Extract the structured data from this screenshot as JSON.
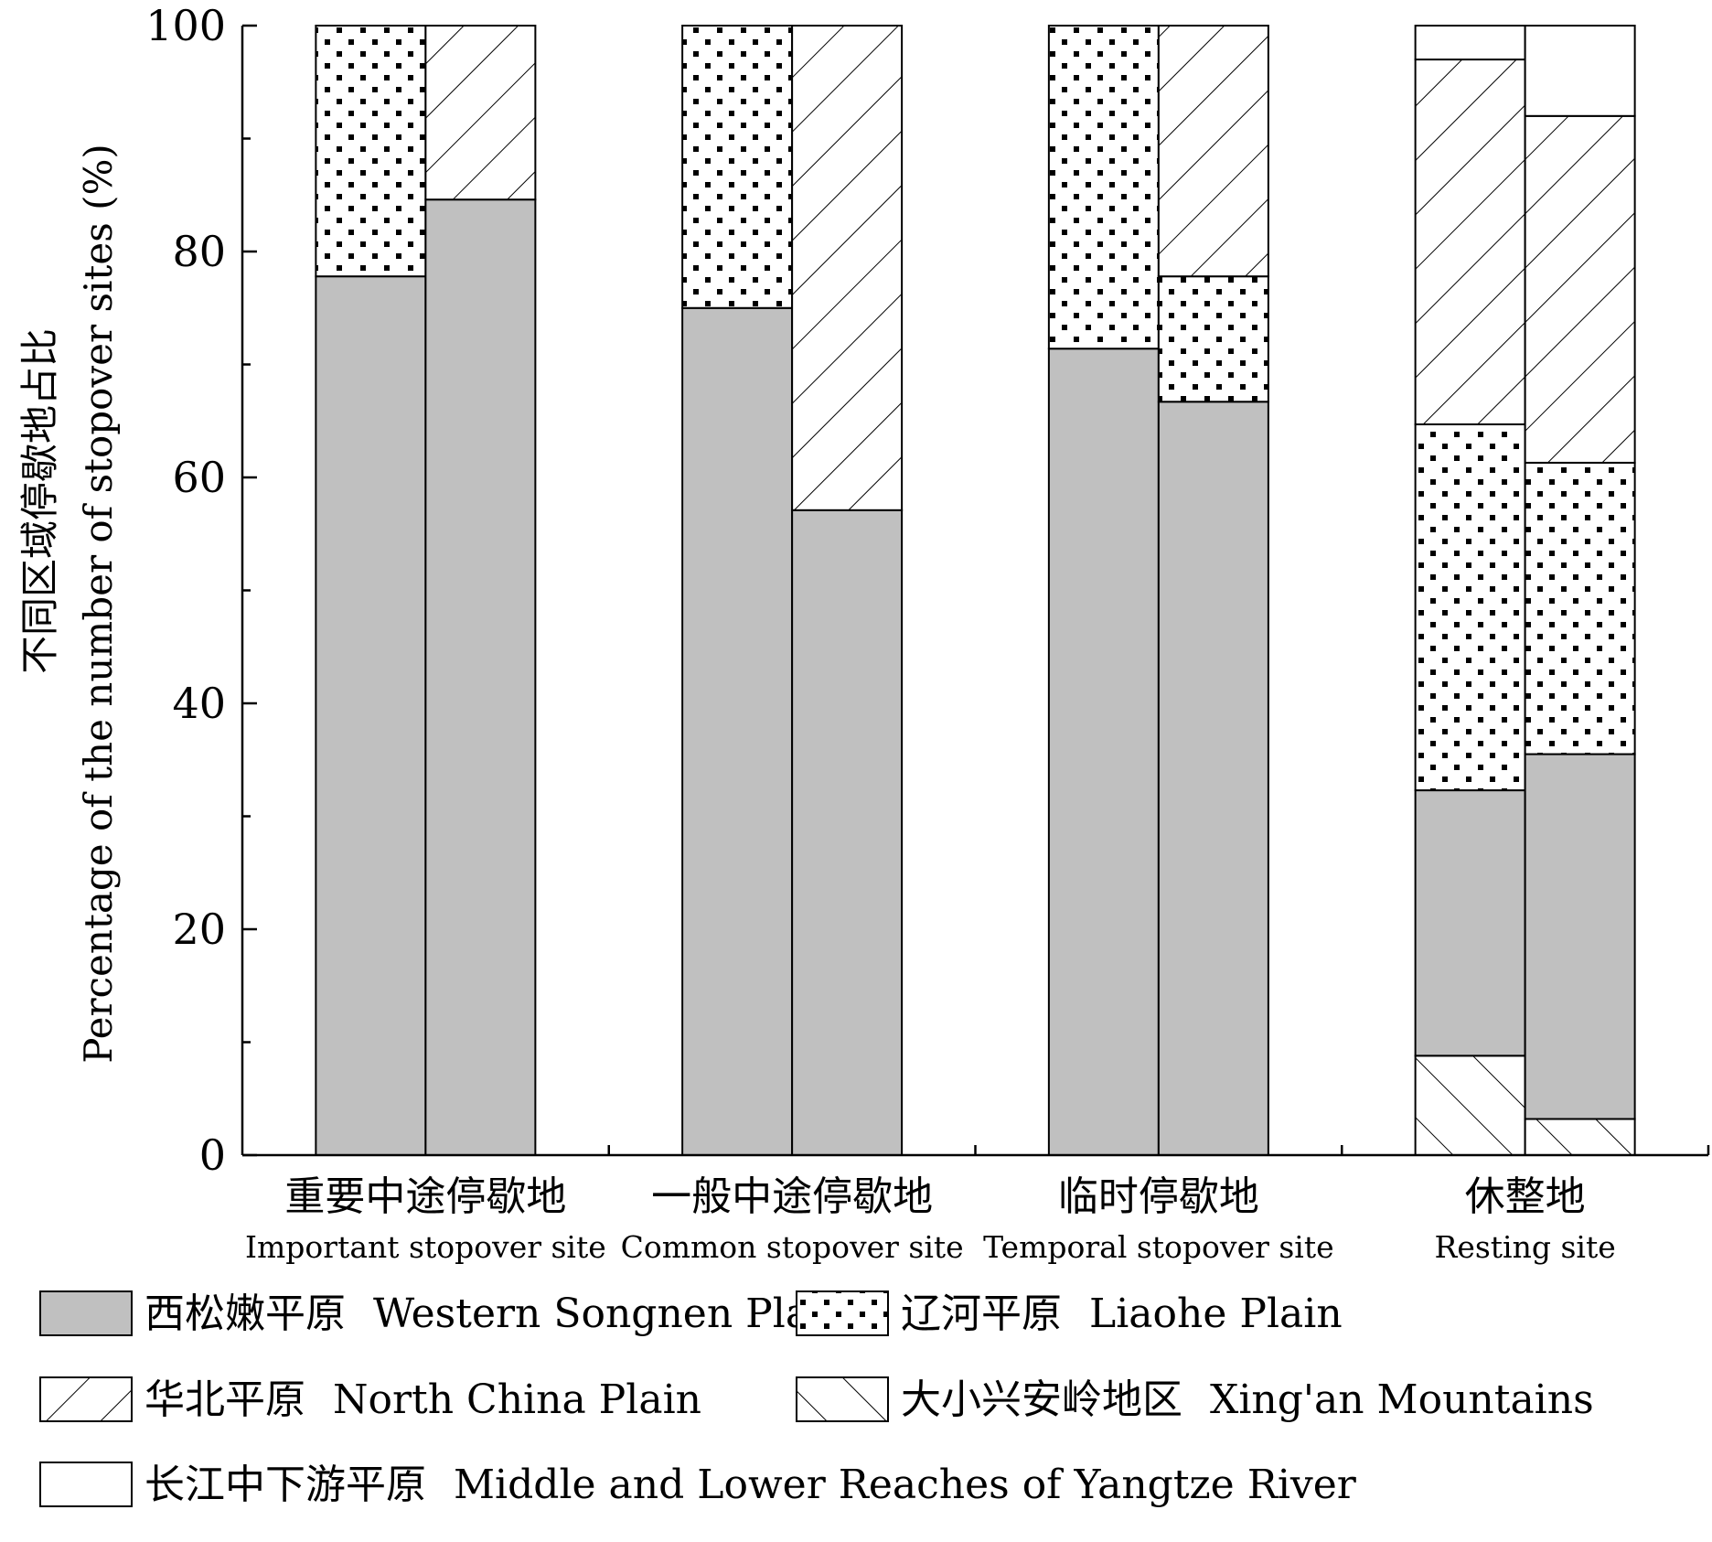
{
  "chart_data": {
    "type": "bar",
    "stacked": true,
    "ylim": [
      0,
      100
    ],
    "yticks": [
      0,
      20,
      40,
      60,
      80,
      100
    ],
    "ylabel_cn": "不同区域停歇地占比",
    "ylabel_en": "Percentage of the number of stopover sites (%)",
    "groups": [
      {
        "label_cn": "重要中途停歇地",
        "label_en": "Important stopover site"
      },
      {
        "label_cn": "一般中途停歇地",
        "label_en": "Common stopover site"
      },
      {
        "label_cn": "临时停歇地",
        "label_en": "Temporal stopover site"
      },
      {
        "label_cn": "休整地",
        "label_en": "Resting site"
      }
    ],
    "series": [
      {
        "key": "xingan",
        "label_cn": "大小兴安岭地区",
        "label_en": "Xing'an Mountains",
        "pattern": "fhatch"
      },
      {
        "key": "songnen",
        "label_cn": "西松嫩平原",
        "label_en": "Western Songnen Plain",
        "pattern": "gray"
      },
      {
        "key": "liaohe",
        "label_cn": "辽河平原",
        "label_en": "Liaohe Plain",
        "pattern": "dots"
      },
      {
        "key": "northchina",
        "label_cn": "华北平原",
        "label_en": "North China Plain",
        "pattern": "bhatch"
      },
      {
        "key": "yangtze",
        "label_cn": "长江中下游平原",
        "label_en": "Middle and Lower Reaches of Yangtze River",
        "pattern": "white"
      }
    ],
    "bars": [
      {
        "group": 0,
        "segments": {
          "xingan": 0,
          "songnen": 77.8,
          "liaohe": 22.2,
          "northchina": 0,
          "yangtze": 0
        }
      },
      {
        "group": 0,
        "segments": {
          "xingan": 0,
          "songnen": 84.6,
          "liaohe": 0,
          "northchina": 15.4,
          "yangtze": 0
        }
      },
      {
        "group": 1,
        "segments": {
          "xingan": 0,
          "songnen": 75.0,
          "liaohe": 25.0,
          "northchina": 0,
          "yangtze": 0
        }
      },
      {
        "group": 1,
        "segments": {
          "xingan": 0,
          "songnen": 57.1,
          "liaohe": 0,
          "northchina": 42.9,
          "yangtze": 0
        }
      },
      {
        "group": 2,
        "segments": {
          "xingan": 0,
          "songnen": 71.4,
          "liaohe": 28.6,
          "northchina": 0,
          "yangtze": 0
        }
      },
      {
        "group": 2,
        "segments": {
          "xingan": 0,
          "songnen": 66.7,
          "liaohe": 11.1,
          "northchina": 22.2,
          "yangtze": 0
        }
      },
      {
        "group": 3,
        "segments": {
          "xingan": 8.8,
          "songnen": 23.5,
          "liaohe": 32.4,
          "northchina": 32.3,
          "yangtze": 3.0
        }
      },
      {
        "group": 3,
        "segments": {
          "xingan": 3.2,
          "songnen": 32.3,
          "liaohe": 25.8,
          "northchina": 30.7,
          "yangtze": 8.0
        }
      }
    ],
    "legend": [
      [
        "songnen",
        "liaohe"
      ],
      [
        "northchina",
        "xingan"
      ],
      [
        "yangtze"
      ]
    ],
    "grid": false
  }
}
